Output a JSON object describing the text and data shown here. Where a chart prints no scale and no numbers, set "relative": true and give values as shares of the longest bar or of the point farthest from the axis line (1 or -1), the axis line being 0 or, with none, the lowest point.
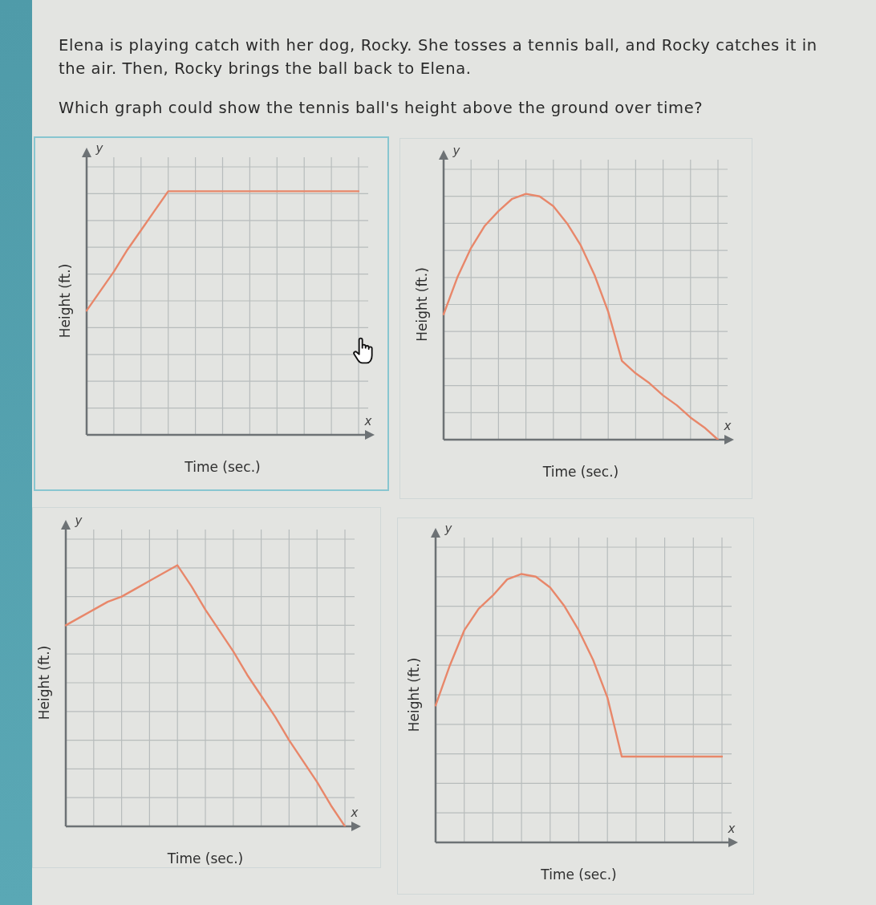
{
  "chart_data": [
    {
      "type": "other",
      "title": "Elena is playing catch with her dog, Rocky. She tosses a tennis ball, and Rocky catches it in the air. Then, Rocky brings the ball back to Elena.",
      "subtitle": "Which graph could show the tennis ball's height above the ground over time?"
    },
    {
      "type": "line",
      "xlabel": "Time (sec.)",
      "ylabel": "Height (ft.)",
      "annotations": [
        "y",
        "x"
      ],
      "relative": true,
      "grid": true,
      "tick_labels": false,
      "categories": [
        null,
        null,
        null,
        null,
        null,
        null,
        null,
        null,
        null,
        null,
        null,
        null,
        null,
        null,
        null,
        null,
        null,
        null,
        null,
        null,
        null
      ],
      "color": "#e8876a",
      "values": [
        0.51,
        0.59,
        0.67,
        0.76,
        0.84,
        0.92,
        1,
        1,
        1,
        1,
        1,
        1,
        1,
        1,
        1,
        1,
        1,
        1,
        1,
        1,
        1
      ]
    },
    {
      "type": "line",
      "xlabel": "Time (sec.)",
      "ylabel": "Height (ft.)",
      "annotations": [
        "y",
        "x"
      ],
      "relative": true,
      "grid": true,
      "tick_labels": false,
      "categories": [
        null,
        null,
        null,
        null,
        null,
        null,
        null,
        null,
        null,
        null,
        null,
        null,
        null,
        null,
        null,
        null,
        null,
        null,
        null,
        null,
        null
      ],
      "color": "#e8876a",
      "values": [
        0.51,
        0.66,
        0.78,
        0.87,
        0.93,
        0.98,
        1,
        0.99,
        0.95,
        0.88,
        0.79,
        0.67,
        0.52,
        0.32,
        0.27,
        0.23,
        0.18,
        0.14,
        0.09,
        0.05,
        0
      ]
    },
    {
      "type": "line",
      "xlabel": "Time (sec.)",
      "ylabel": "Height (ft.)",
      "annotations": [
        "y",
        "x"
      ],
      "relative": true,
      "grid": true,
      "tick_labels": false,
      "categories": [
        null,
        null,
        null,
        null,
        null,
        null,
        null,
        null,
        null,
        null,
        null,
        null,
        null,
        null,
        null,
        null,
        null,
        null,
        null,
        null,
        null
      ],
      "color": "#e8876a",
      "values": [
        0.77,
        0.8,
        0.83,
        0.86,
        0.88,
        0.91,
        0.94,
        0.97,
        1,
        0.92,
        0.83,
        0.75,
        0.67,
        0.58,
        0.5,
        0.42,
        0.33,
        0.25,
        0.17,
        0.08,
        0
      ]
    },
    {
      "type": "line",
      "xlabel": "Time (sec.)",
      "ylabel": "Height (ft.)",
      "annotations": [
        "y",
        "x"
      ],
      "relative": true,
      "grid": true,
      "tick_labels": false,
      "categories": [
        null,
        null,
        null,
        null,
        null,
        null,
        null,
        null,
        null,
        null,
        null,
        null,
        null,
        null,
        null,
        null,
        null,
        null,
        null,
        null,
        null
      ],
      "color": "#e8876a",
      "values": [
        0.51,
        0.66,
        0.79,
        0.87,
        0.92,
        0.98,
        1,
        0.99,
        0.95,
        0.88,
        0.79,
        0.68,
        0.54,
        0.32,
        0.32,
        0.32,
        0.32,
        0.32,
        0.32,
        0.32,
        0.32
      ]
    }
  ]
}
